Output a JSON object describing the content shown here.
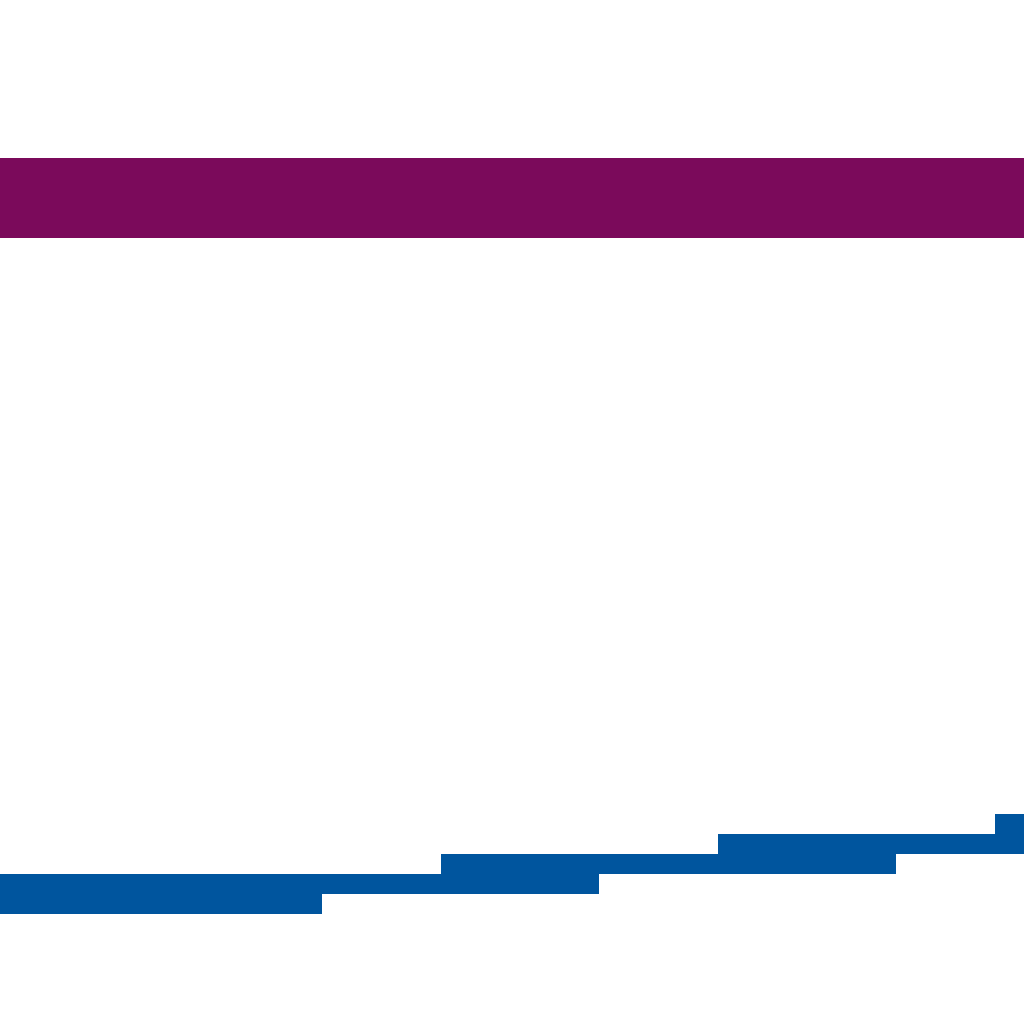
{
  "colors": {
    "background": "#ffffff",
    "band": "#7b0a5b",
    "stairs": "#00559e"
  },
  "graphic": {
    "band_name": "magenta-band",
    "stairs_name": "blue-staircase-graphic"
  }
}
